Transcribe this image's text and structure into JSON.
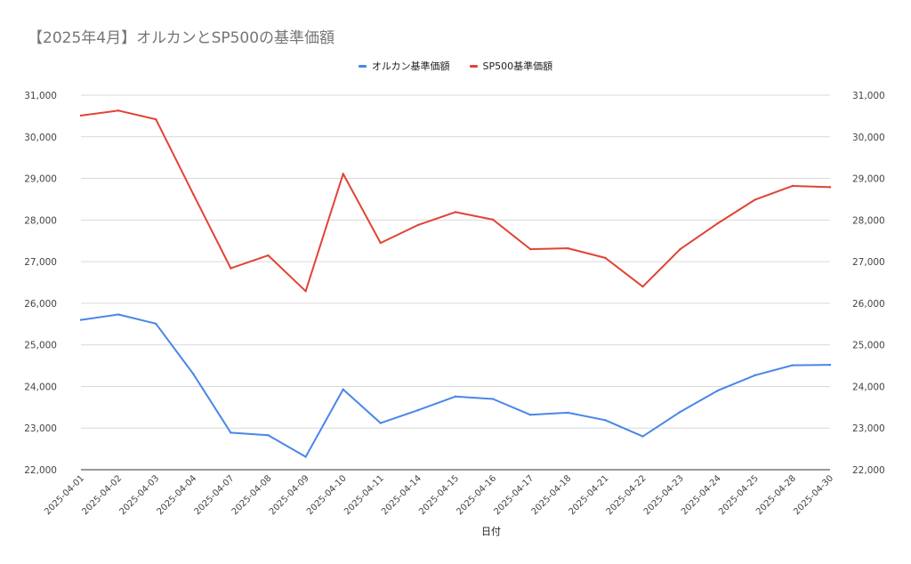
{
  "chart_data": {
    "type": "line",
    "title": "【2025年4月】オルカンとSP500の基準価額",
    "xlabel": "日付",
    "ylabel": "",
    "ylim": [
      22000,
      31000
    ],
    "y_ticks": [
      "22,000",
      "23,000",
      "24,000",
      "25,000",
      "26,000",
      "27,000",
      "28,000",
      "29,000",
      "30,000",
      "31,000"
    ],
    "dual_axis": true,
    "grid": true,
    "legend_position": "top",
    "categories": [
      "2025-04-01",
      "2025-04-02",
      "2025-04-03",
      "2025-04-04",
      "2025-04-07",
      "2025-04-08",
      "2025-04-09",
      "2025-04-10",
      "2025-04-11",
      "2025-04-14",
      "2025-04-15",
      "2025-04-16",
      "2025-04-17",
      "2025-04-18",
      "2025-04-21",
      "2025-04-22",
      "2025-04-23",
      "2025-04-24",
      "2025-04-25",
      "2025-04-28",
      "2025-04-30"
    ],
    "series": [
      {
        "name": "オルカン基準価額",
        "color": "#4a86e8",
        "values": [
          25600,
          25730,
          25510,
          24300,
          22890,
          22830,
          22310,
          23930,
          23120,
          23430,
          23760,
          23700,
          23320,
          23370,
          23190,
          22800,
          23390,
          23900,
          24270,
          24510,
          24520
        ]
      },
      {
        "name": "SP500基準価額",
        "color": "#e04434",
        "values": [
          30510,
          30630,
          30420,
          28620,
          26840,
          27150,
          26290,
          29110,
          27450,
          27880,
          28190,
          28010,
          27300,
          27320,
          27090,
          26400,
          27300,
          27920,
          28490,
          28820,
          28790
        ]
      }
    ]
  }
}
